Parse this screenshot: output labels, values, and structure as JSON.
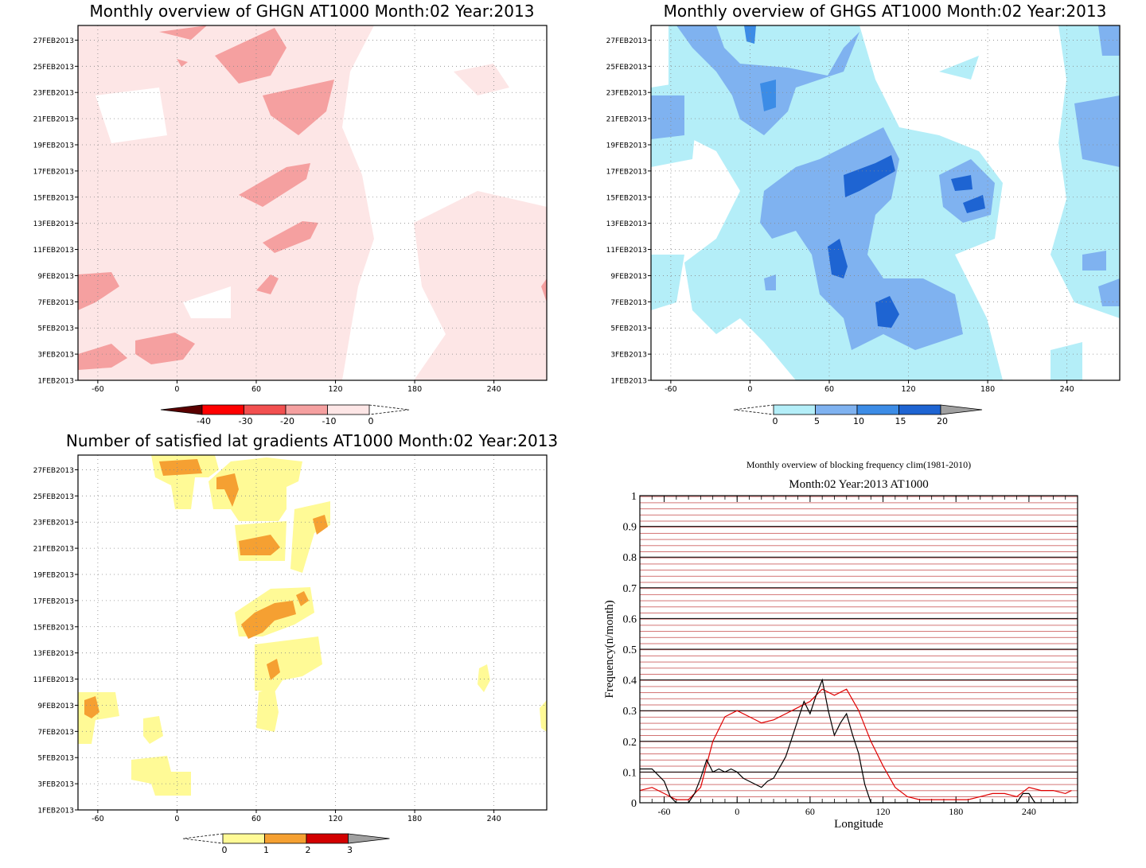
{
  "panels": {
    "ghgn": {
      "title": "Monthly overview of GHGN AT1000 Month:02 Year:2013",
      "colorbar": {
        "labels": [
          "-40",
          "-30",
          "-20",
          "-10",
          "0"
        ],
        "colors": [
          "#5a0000",
          "#ff0000",
          "#f25050",
          "#f5a0a0",
          "#fde6e6"
        ]
      }
    },
    "ghgs": {
      "title": "Monthly overview of GHGS AT1000 Month:02 Year:2013",
      "colorbar": {
        "labels": [
          "0",
          "5",
          "10",
          "15",
          "20"
        ],
        "colors": [
          "#b4eef8",
          "#7fb2f0",
          "#3c8ce6",
          "#1e64d2",
          "#a0a0a0"
        ]
      }
    },
    "grad": {
      "title": "Number of satisfied lat gradients AT1000 Month:02 Year:2013",
      "colorbar": {
        "labels": [
          "0",
          "1",
          "2",
          "3"
        ],
        "colors": [
          "#fffa96",
          "#f5a032",
          "#d20000",
          "#a0a0a0"
        ]
      }
    }
  },
  "shared_axes": {
    "x_ticks": [
      "-60",
      "0",
      "60",
      "120",
      "180",
      "240"
    ],
    "y_ticks": [
      "1FEB2013",
      "3FEB2013",
      "5FEB2013",
      "7FEB2013",
      "9FEB2013",
      "11FEB2013",
      "13FEB2013",
      "15FEB2013",
      "17FEB2013",
      "19FEB2013",
      "21FEB2013",
      "23FEB2013",
      "25FEB2013",
      "27FEB2013"
    ],
    "x_range": [
      -75,
      280
    ],
    "y_range_days": [
      1,
      28
    ]
  },
  "chart_data": [
    {
      "type": "heatmap",
      "title": "Monthly overview of GHGN AT1000 Month:02 Year:2013",
      "x_ticks": [
        "-60",
        "0",
        "60",
        "120",
        "180",
        "240"
      ],
      "y_ticks": [
        "1FEB2013",
        "3FEB2013",
        "5FEB2013",
        "7FEB2013",
        "9FEB2013",
        "11FEB2013",
        "13FEB2013",
        "15FEB2013",
        "17FEB2013",
        "19FEB2013",
        "21FEB2013",
        "23FEB2013",
        "25FEB2013",
        "27FEB2013"
      ],
      "levels": [
        -40,
        -30,
        -20,
        -10,
        0
      ],
      "regions": [
        {
          "level": "0 to -10",
          "days": [
            1,
            28
          ],
          "lon": [
            -75,
            230
          ]
        },
        {
          "level": "-10 to -20",
          "lon_center": 75,
          "day_center": 25.5
        },
        {
          "level": "-10 to -20",
          "lon_center": 90,
          "day_center": 22
        },
        {
          "level": "-10 to -20",
          "lon_center": 75,
          "day_center": 16.5
        },
        {
          "level": "-10 to -20",
          "lon_center": 80,
          "day_center": 12.5
        },
        {
          "level": "-10 to -20",
          "lon_center": 65,
          "day_center": 9
        },
        {
          "level": "-10 to -20",
          "lon_center": -60,
          "day_center": 8.5
        },
        {
          "level": "-10 to -20",
          "lon_center": -60,
          "day_center": 2.5
        },
        {
          "level": "-10 to -20",
          "lon_center": -15,
          "day_center": 3
        }
      ]
    },
    {
      "type": "heatmap",
      "title": "Monthly overview of GHGS AT1000 Month:02 Year:2013",
      "x_ticks": [
        "-60",
        "0",
        "60",
        "120",
        "180",
        "240"
      ],
      "y_ticks": [
        "1FEB2013",
        "3FEB2013",
        "5FEB2013",
        "7FEB2013",
        "9FEB2013",
        "11FEB2013",
        "13FEB2013",
        "15FEB2013",
        "17FEB2013",
        "19FEB2013",
        "21FEB2013",
        "23FEB2013",
        "25FEB2013",
        "27FEB2013"
      ],
      "levels": [
        0,
        5,
        10,
        15,
        20
      ],
      "regions": [
        {
          "level": "0-5",
          "lon": [
            -10,
            200
          ],
          "days": [
            1,
            28
          ]
        },
        {
          "level": "5-10",
          "lon": [
            40,
            115
          ],
          "days": [
            3,
            17
          ]
        },
        {
          "level": "15-20",
          "lon_center": 100,
          "day_center": 6
        },
        {
          "level": "15-20",
          "lon_center": 65,
          "day_center": 10.5
        },
        {
          "level": "15-20",
          "lon_center": 90,
          "day_center": 16.5
        },
        {
          "level": "15-20",
          "lon_center": 160,
          "day_center": 16
        }
      ]
    },
    {
      "type": "heatmap",
      "title": "Number of satisfied lat gradients AT1000 Month:02 Year:2013",
      "x_ticks": [
        "-60",
        "0",
        "60",
        "120",
        "180",
        "240"
      ],
      "y_ticks": [
        "1FEB2013",
        "3FEB2013",
        "5FEB2013",
        "7FEB2013",
        "9FEB2013",
        "11FEB2013",
        "13FEB2013",
        "15FEB2013",
        "17FEB2013",
        "19FEB2013",
        "21FEB2013",
        "23FEB2013",
        "25FEB2013",
        "27FEB2013"
      ],
      "levels": [
        0,
        1,
        2,
        3
      ],
      "cells": [
        {
          "lon": 0,
          "day": 27,
          "value": 2
        },
        {
          "lon": 35,
          "day": 26,
          "value": 2
        },
        {
          "lon": 60,
          "day": 21,
          "value": 2
        },
        {
          "lon": 105,
          "day": 22.5,
          "value": 2
        },
        {
          "lon": 70,
          "day": 16,
          "value": 2
        },
        {
          "lon": 90,
          "day": 17,
          "value": 2
        },
        {
          "lon": 70,
          "day": 12,
          "value": 2
        },
        {
          "lon": -65,
          "day": 8.5,
          "value": 2
        },
        {
          "lon": 40,
          "day": 26,
          "value": 1
        },
        {
          "lon": 85,
          "day": 13,
          "value": 1
        },
        {
          "lon": -20,
          "day": 3.5,
          "value": 1
        },
        {
          "lon": 230,
          "day": 11,
          "value": 1
        }
      ]
    },
    {
      "type": "line",
      "title": "Monthly overview of blocking frequency clim(1981-2010)",
      "subtitle": "Month:02 Year:2013  AT1000",
      "xlabel": "Longitude",
      "ylabel": "Frequency(n/month)",
      "x_ticks": [
        "-60",
        "0",
        "60",
        "120",
        "180",
        "240"
      ],
      "y_ticks": [
        "0",
        "0.1",
        "0.2",
        "0.3",
        "0.4",
        "0.5",
        "0.6",
        "0.7",
        "0.8",
        "0.9",
        "1"
      ],
      "xlim": [
        -80,
        280
      ],
      "ylim": [
        0,
        1
      ],
      "series": [
        {
          "color": "#e00000",
          "x": [
            -80,
            -70,
            -60,
            -50,
            -40,
            -30,
            -20,
            -10,
            0,
            10,
            20,
            30,
            40,
            50,
            60,
            70,
            80,
            90,
            100,
            110,
            120,
            130,
            140,
            150,
            160,
            170,
            180,
            190,
            200,
            210,
            220,
            230,
            240,
            250,
            260,
            270,
            275
          ],
          "values": [
            0.04,
            0.05,
            0.03,
            0.01,
            0.01,
            0.05,
            0.2,
            0.28,
            0.3,
            0.28,
            0.26,
            0.27,
            0.29,
            0.31,
            0.33,
            0.37,
            0.35,
            0.37,
            0.3,
            0.2,
            0.12,
            0.05,
            0.02,
            0.01,
            0.01,
            0.01,
            0.01,
            0.01,
            0.02,
            0.03,
            0.03,
            0.02,
            0.05,
            0.04,
            0.04,
            0.03,
            0.04
          ]
        },
        {
          "color": "#000000",
          "x": [
            -80,
            -70,
            -60,
            -55,
            -50,
            -40,
            -35,
            -30,
            -25,
            -20,
            -15,
            -10,
            -5,
            0,
            5,
            10,
            20,
            25,
            30,
            40,
            45,
            50,
            55,
            60,
            65,
            70,
            75,
            80,
            85,
            90,
            95,
            100,
            105,
            110,
            115,
            120,
            130,
            140,
            150,
            160,
            170,
            180,
            190,
            200,
            210,
            220,
            230,
            235,
            240,
            245,
            250,
            260,
            270,
            275
          ],
          "values": [
            0.11,
            0.11,
            0.07,
            0.02,
            0.0,
            0.0,
            0.03,
            0.08,
            0.14,
            0.1,
            0.11,
            0.1,
            0.11,
            0.1,
            0.08,
            0.07,
            0.05,
            0.07,
            0.08,
            0.15,
            0.21,
            0.27,
            0.33,
            0.29,
            0.35,
            0.4,
            0.3,
            0.22,
            0.26,
            0.29,
            0.22,
            0.16,
            0.06,
            0.0,
            0.0,
            0.0,
            0.0,
            0.0,
            0.0,
            0.0,
            0.0,
            0.0,
            0.0,
            0.0,
            0.0,
            0.0,
            0.0,
            0.03,
            0.03,
            0.0,
            0.0,
            0.0,
            0.0,
            0.0
          ]
        }
      ]
    }
  ]
}
